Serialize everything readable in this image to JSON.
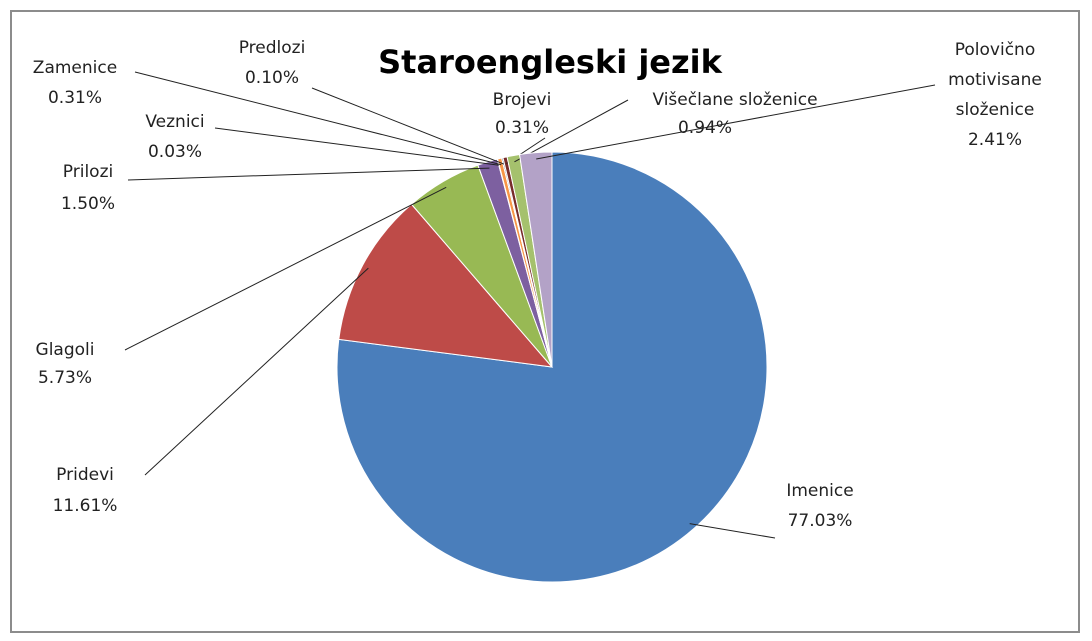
{
  "chart_data": {
    "type": "pie",
    "title": "Staroengleski jezik",
    "categories": [
      "Imenice",
      "Pridevi",
      "Glagoli",
      "Prilozi",
      "Veznici",
      "Zamenice",
      "Predlozi",
      "Brojevi",
      "Višečlane složenice",
      "Polovično motivisane složenice"
    ],
    "values": [
      77.03,
      11.61,
      5.73,
      1.5,
      0.03,
      0.31,
      0.1,
      0.31,
      0.94,
      2.41
    ],
    "value_labels": [
      "77.03%",
      "11.61%",
      "5.73%",
      "1.50%",
      "0.03%",
      "0.31%",
      "0.10%",
      "0.31%",
      "0.94%",
      "2.41%"
    ],
    "colors": [
      "#4a7ebb",
      "#be4b48",
      "#98b954",
      "#7d60a0",
      "#46aac5",
      "#f79646",
      "#2c4d75",
      "#772c2a",
      "#a5c16d",
      "#b3a2c7"
    ]
  }
}
